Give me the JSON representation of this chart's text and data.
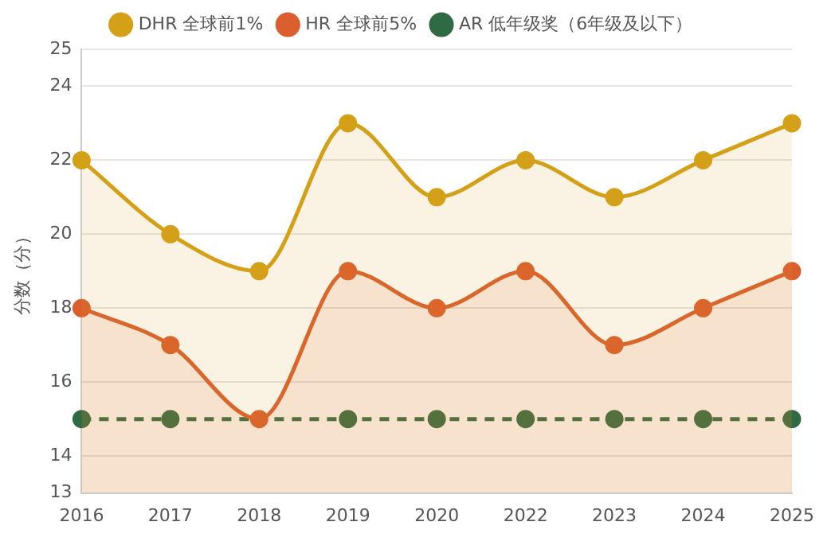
{
  "chart_data": {
    "type": "line",
    "ylabel": "分数（分）",
    "categories": [
      "2016",
      "2017",
      "2018",
      "2019",
      "2020",
      "2022",
      "2023",
      "2024",
      "2025"
    ],
    "series": [
      {
        "name": "DHR 全球前1%",
        "type": "area",
        "color": "#d4a017",
        "values": [
          22,
          20,
          19,
          23,
          21,
          22,
          21,
          22,
          23
        ]
      },
      {
        "name": "HR 全球前5%",
        "type": "area",
        "color": "#db5f2e",
        "values": [
          18,
          17,
          15,
          19,
          18,
          19,
          17,
          18,
          19
        ]
      },
      {
        "name": "AR 低年级奖（6年级及以下）",
        "color": "#2e6b45",
        "line_style": "dashed",
        "values": [
          15,
          15,
          null,
          15,
          15,
          15,
          15,
          15,
          15
        ]
      }
    ],
    "ylim": [
      13,
      25
    ],
    "yticks": [
      13,
      14,
      16,
      18,
      20,
      22,
      24,
      25
    ],
    "grid": "y",
    "legend": "top",
    "marker": "circle"
  }
}
